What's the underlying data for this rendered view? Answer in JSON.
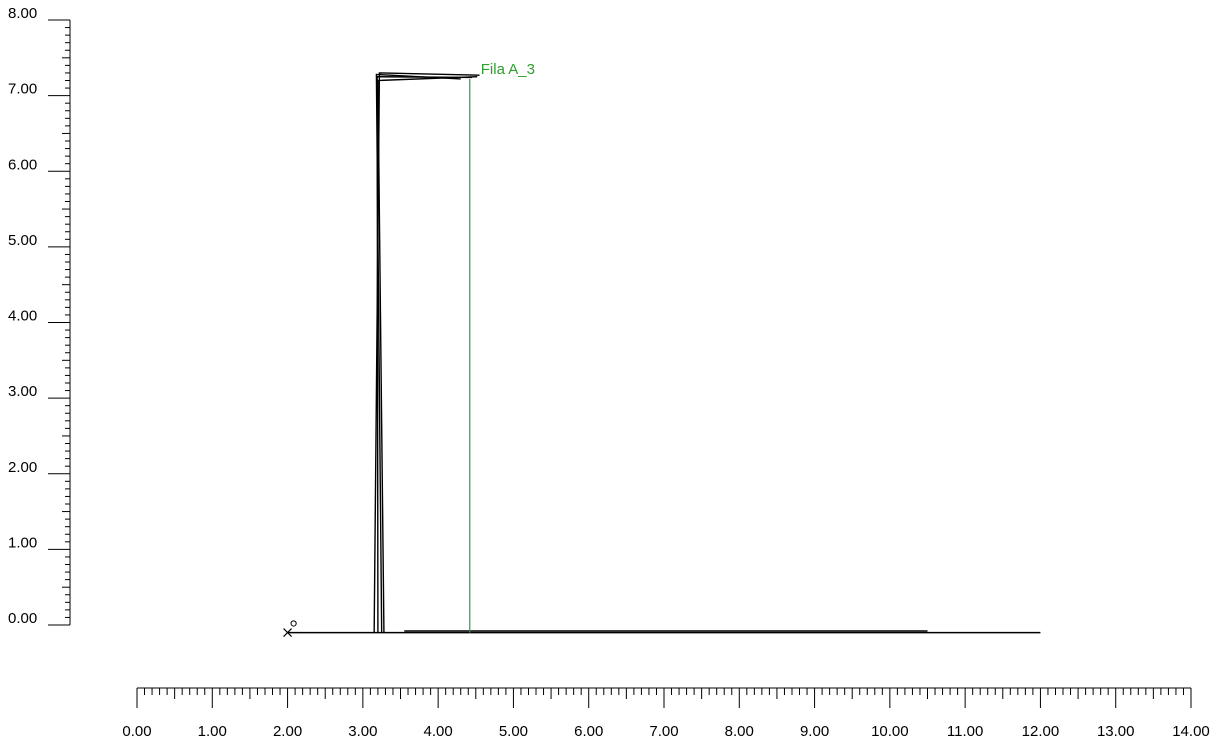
{
  "chart_data": {
    "type": "line",
    "title": "",
    "xlabel": "",
    "ylabel": "",
    "xlim": [
      0,
      14
    ],
    "ylim": [
      0,
      8
    ],
    "x_ticks": [
      "0.00",
      "1.00",
      "2.00",
      "3.00",
      "4.00",
      "5.00",
      "6.00",
      "7.00",
      "8.00",
      "9.00",
      "10.00",
      "11.00",
      "12.00",
      "13.00",
      "14.00"
    ],
    "y_ticks": [
      "0.00",
      "1.00",
      "2.00",
      "3.00",
      "4.00",
      "5.00",
      "6.00",
      "7.00",
      "8.00"
    ],
    "x_minor_ticks_per_major": 10,
    "y_minor_ticks_per_major": 10,
    "baseline": {
      "x": [
        2.0,
        12.0
      ],
      "y": -0.1
    },
    "baseline_marker_x": 2.0,
    "small_circle": {
      "x": 2.08,
      "y": 0.02
    },
    "secondary_baseline": {
      "x": [
        3.55,
        10.5
      ],
      "y": -0.08
    },
    "series": [
      {
        "color": "#000000",
        "x": [
          3.15,
          3.22,
          4.55
        ],
        "y": [
          -0.1,
          7.3,
          7.27
        ]
      },
      {
        "color": "#000000",
        "x": [
          3.2,
          3.19,
          4.45
        ],
        "y": [
          -0.1,
          7.25,
          7.24
        ]
      },
      {
        "color": "#000000",
        "x": [
          3.25,
          3.18,
          4.3
        ],
        "y": [
          -0.1,
          7.28,
          7.22
        ]
      },
      {
        "color": "#000000",
        "x": [
          3.28,
          3.2,
          4.52
        ],
        "y": [
          -0.1,
          7.2,
          7.25
        ]
      }
    ],
    "markers": [
      {
        "label": "Fila A_3",
        "x": 4.42,
        "y_top": 7.22,
        "y_bottom": -0.1,
        "color": "#2e9e2e"
      }
    ]
  }
}
